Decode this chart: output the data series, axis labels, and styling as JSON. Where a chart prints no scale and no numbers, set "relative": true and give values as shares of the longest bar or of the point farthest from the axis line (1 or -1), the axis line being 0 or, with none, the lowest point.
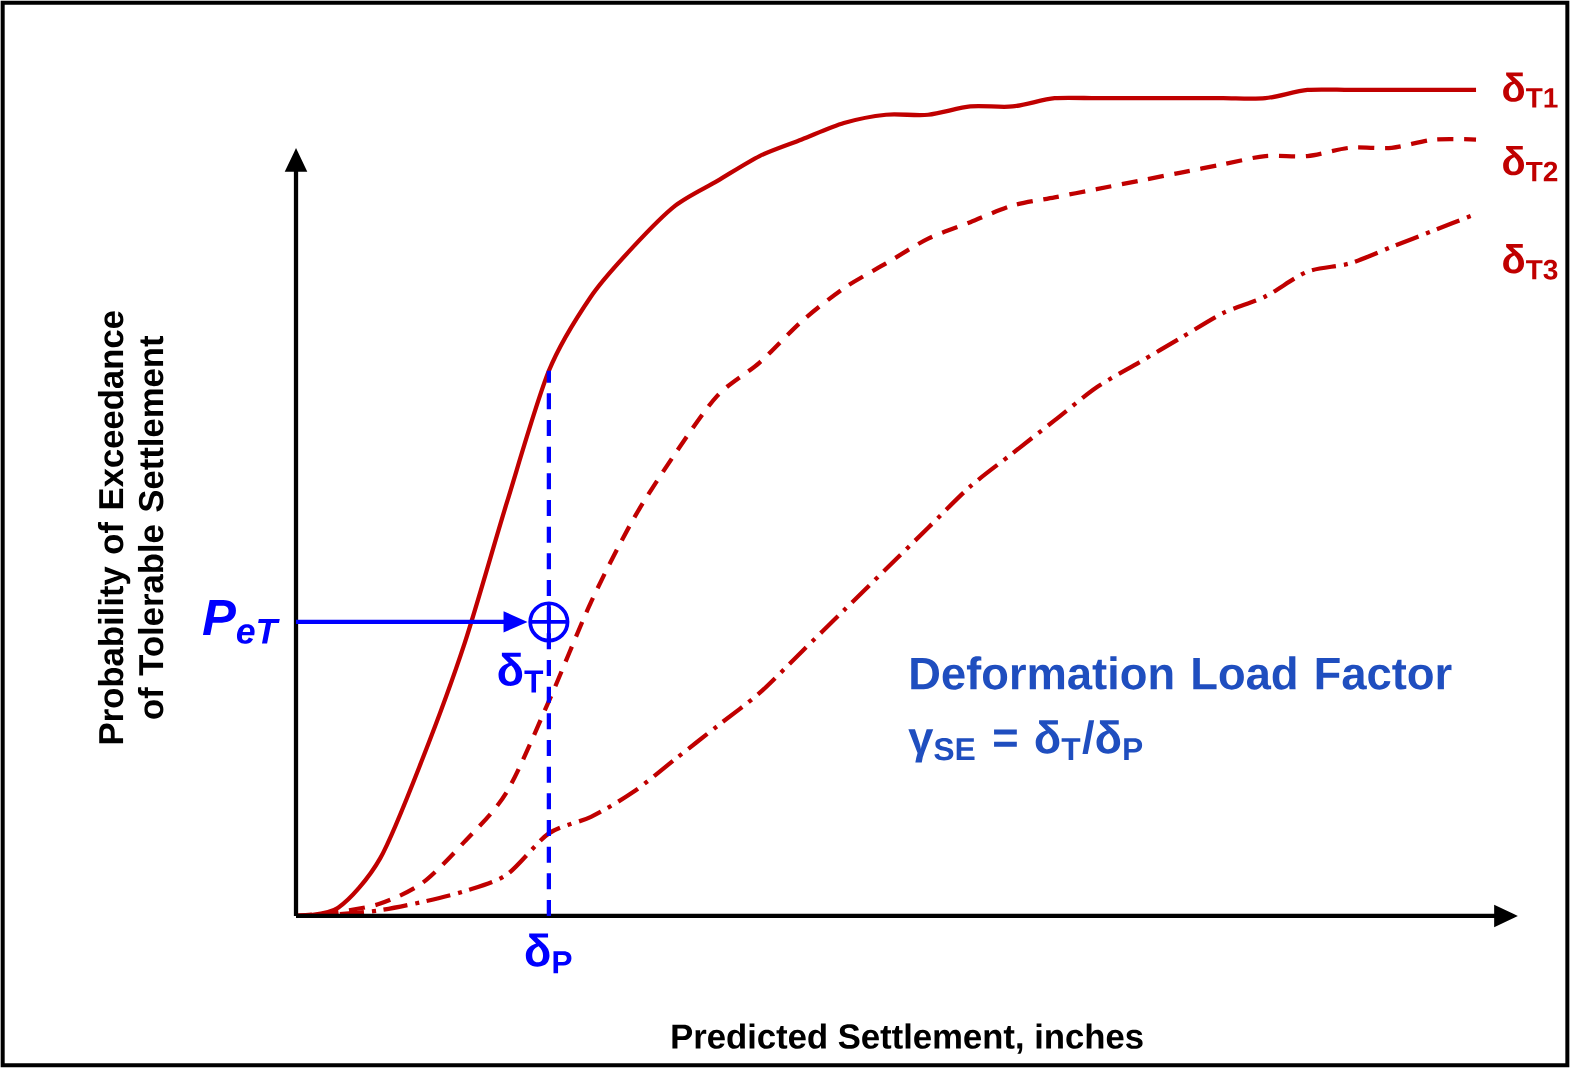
{
  "chart_data": {
    "type": "line",
    "relative": true,
    "marker": "none",
    "xlabel": "Predicted Settlement, inches",
    "ylabel": "Probability of Exceedance of Tolerable Settlement",
    "categories": [
      null,
      null,
      null,
      null,
      null,
      null,
      null,
      null,
      null,
      null,
      null,
      null,
      null,
      null,
      null,
      null,
      null,
      null,
      null,
      null,
      null,
      null,
      null,
      null,
      null,
      null,
      null,
      null,
      null
    ],
    "series": [
      {
        "name": "δ$_{T1}$",
        "color": "#c00000",
        "line_style": "solid",
        "values": [
          0,
          0.01,
          0.07,
          0.19,
          0.33,
          0.5,
          0.66,
          0.75,
          0.81,
          0.86,
          0.89,
          0.92,
          0.94,
          0.96,
          0.97,
          0.97,
          0.98,
          0.98,
          0.99,
          0.99,
          0.99,
          0.99,
          0.99,
          0.99,
          1,
          1,
          1,
          1,
          1
        ]
      },
      {
        "name": "δ$_{T2}$",
        "color": "#c00000",
        "line_style": "dashed",
        "values": [
          0,
          0.005,
          0.015,
          0.04,
          0.09,
          0.15,
          0.26,
          0.38,
          0.48,
          0.56,
          0.63,
          0.67,
          0.72,
          0.76,
          0.79,
          0.82,
          0.84,
          0.86,
          0.87,
          0.88,
          0.89,
          0.9,
          0.91,
          0.92,
          0.92,
          0.93,
          0.93,
          0.94,
          0.94
        ]
      },
      {
        "name": "δ$_{T3}$",
        "color": "#c00000",
        "line_style": "dashdot",
        "values": [
          0,
          0.002,
          0.007,
          0.017,
          0.03,
          0.05,
          0.1,
          0.12,
          0.15,
          0.19,
          0.23,
          0.27,
          0.32,
          0.37,
          0.42,
          0.47,
          0.52,
          0.56,
          0.6,
          0.64,
          0.67,
          0.7,
          0.73,
          0.75,
          0.78,
          0.79,
          0.81,
          0.83,
          0.85
        ]
      }
    ],
    "ref_lines": [
      {
        "axis": "y",
        "value": 0.356,
        "label": "P$_{eT}$",
        "color": "#0000ff",
        "line_style": "solid"
      }
    ],
    "annotations": [
      "δ$_{T}$",
      "Deformation Load Factor γ$_{SE}$ = δ$_{T}$/δ$_{P}$",
      "δ$_{P}$"
    ]
  }
}
